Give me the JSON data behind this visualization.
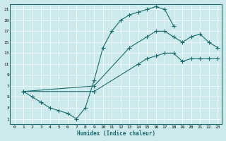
{
  "xlabel": "Humidex (Indice chaleur)",
  "bg_color": "#cce9ec",
  "grid_color": "#ffffff",
  "line_color": "#1a6b6b",
  "xlim": [
    -0.5,
    23.5
  ],
  "ylim": [
    0,
    22
  ],
  "xticks": [
    0,
    1,
    2,
    3,
    4,
    5,
    6,
    7,
    8,
    9,
    10,
    11,
    12,
    13,
    14,
    15,
    16,
    17,
    18,
    19,
    20,
    21,
    22,
    23
  ],
  "yticks": [
    1,
    3,
    5,
    7,
    9,
    11,
    13,
    15,
    17,
    19,
    21
  ],
  "line1_x": [
    1,
    2,
    3,
    4,
    5,
    6,
    7,
    8,
    9,
    10,
    11,
    12,
    13,
    14,
    15,
    16,
    17,
    18
  ],
  "line1_y": [
    6,
    5,
    4,
    3,
    2.5,
    2,
    1,
    3,
    8,
    14,
    17,
    19,
    20,
    20.5,
    21,
    21.5,
    21,
    18
  ],
  "line2_x": [
    1,
    9,
    13,
    15,
    16,
    17,
    18,
    19,
    20,
    21,
    22,
    23
  ],
  "line2_y": [
    6,
    7,
    14,
    16,
    17,
    17,
    16,
    15,
    16,
    16.5,
    15,
    14
  ],
  "line3_x": [
    1,
    9,
    14,
    15,
    16,
    17,
    18,
    19,
    20,
    21,
    22,
    23
  ],
  "line3_y": [
    6,
    6,
    11,
    12,
    12.5,
    13,
    13,
    11.5,
    12,
    12,
    12,
    12
  ]
}
